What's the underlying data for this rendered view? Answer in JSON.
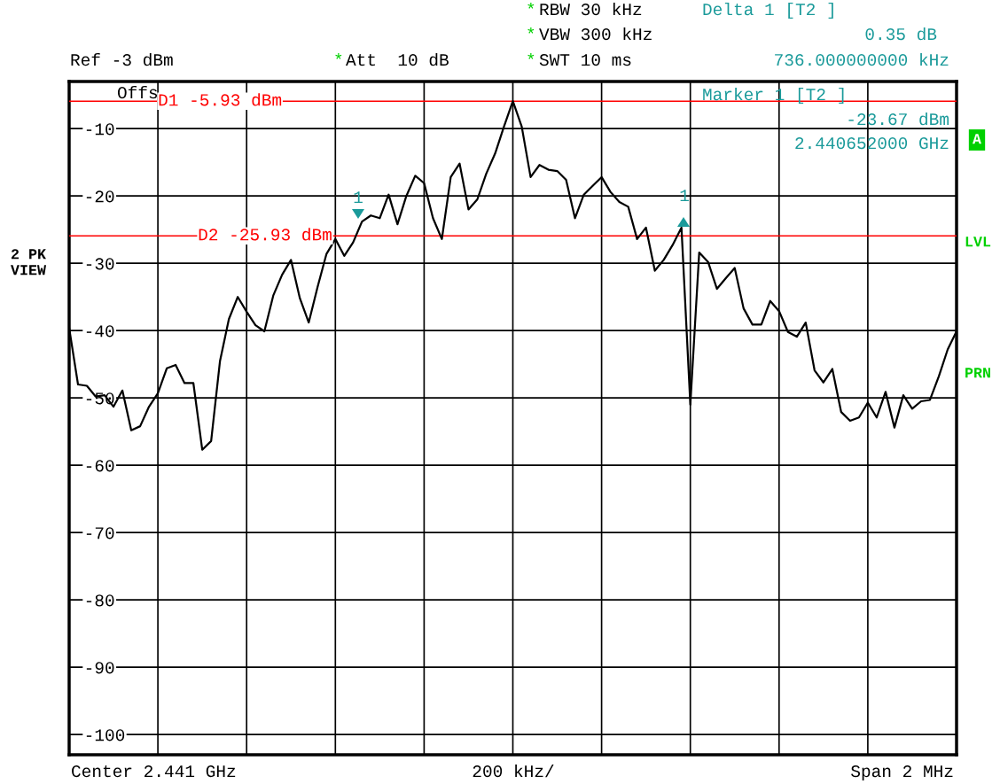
{
  "chart_data": {
    "type": "line",
    "categories": [
      null,
      null,
      null,
      null,
      null,
      null,
      null,
      null,
      null,
      null,
      null,
      null,
      null,
      null,
      null,
      null,
      null,
      null,
      null,
      null,
      null,
      null,
      null,
      null,
      null,
      null,
      null,
      null,
      null,
      null,
      null,
      null,
      null,
      null,
      null,
      null,
      null,
      null,
      null,
      null,
      null,
      null,
      null,
      null,
      null,
      null,
      null,
      null,
      null,
      null,
      null,
      null,
      null,
      null,
      null,
      null,
      null,
      null,
      null,
      null,
      null,
      null,
      null,
      null,
      null,
      null,
      null,
      null,
      null,
      null,
      null,
      null,
      null,
      null,
      null,
      null,
      null,
      null,
      null,
      null,
      null,
      null,
      null,
      null,
      null,
      null,
      null,
      null,
      null,
      null,
      null,
      null,
      null,
      null,
      null,
      null,
      null,
      null,
      null,
      null,
      null
    ],
    "ylim": [
      -103,
      -3
    ],
    "yticks": [
      {
        "value": -10,
        "label": "-10"
      },
      {
        "value": -20,
        "label": "-20"
      },
      {
        "value": -30,
        "label": "-30"
      },
      {
        "value": -40,
        "label": "-40"
      },
      {
        "value": -50,
        "label": "-50"
      },
      {
        "value": -60,
        "label": "-60"
      },
      {
        "value": -70,
        "label": "-70"
      },
      {
        "value": -80,
        "label": "-80"
      },
      {
        "value": -90,
        "label": "-90"
      },
      {
        "value": -100,
        "label": "-100"
      }
    ],
    "grid": true,
    "tick_labels": "y",
    "series": [
      {
        "color": "#000000",
        "line_style": "solid",
        "values": [
          -39.6,
          -48.0,
          -48.2,
          -49.8,
          -49.6,
          -51.3,
          -48.9,
          -54.8,
          -54.2,
          -51.3,
          -49.3,
          -45.6,
          -45.1,
          -47.8,
          -47.8,
          -57.7,
          -56.4,
          -44.5,
          -38.3,
          -35.0,
          -37.2,
          -39.2,
          -40.1,
          -34.8,
          -31.7,
          -29.5,
          -35.2,
          -38.8,
          -33.5,
          -28.6,
          -26.4,
          -28.9,
          -26.9,
          -23.8,
          -22.9,
          -23.3,
          -19.8,
          -24.2,
          -20.0,
          -17.0,
          -18.1,
          -23.3,
          -26.4,
          -17.2,
          -15.2,
          -22.0,
          -20.5,
          -16.7,
          -13.7,
          -9.7,
          -5.9,
          -9.7,
          -17.2,
          -15.4,
          -16.1,
          -16.3,
          -17.6,
          -23.3,
          -19.8,
          -18.5,
          -17.2,
          -19.4,
          -20.9,
          -21.6,
          -26.4,
          -24.7,
          -31.1,
          -29.5,
          -27.3,
          -24.7,
          -51.0,
          -28.4,
          -29.8,
          -33.8,
          -32.2,
          -30.7,
          -36.7,
          -39.1,
          -39.1,
          -35.6,
          -37.1,
          -40.2,
          -40.9,
          -38.8,
          -45.9,
          -47.7,
          -45.7,
          -52.1,
          -53.4,
          -52.9,
          -50.7,
          -52.9,
          -49.1,
          -54.4,
          -49.6,
          -51.6,
          -50.5,
          -50.3,
          -46.8,
          -42.8,
          -40.1
        ]
      }
    ],
    "ref_lines": [
      {
        "axis": "y",
        "value": -5.93,
        "label": "D1 -5.93 dBm",
        "color": "#ff0000",
        "line_style": "solid"
      },
      {
        "axis": "y",
        "value": -25.93,
        "label": "D2 -25.93 dBm",
        "color": "#ff0000",
        "line_style": "solid"
      }
    ],
    "annotations": [
      "*",
      "RBW 30 kHz",
      "*",
      "VBW 300 kHz",
      "*",
      "SWT 10 ms",
      "Ref -3 dBm",
      "*",
      "Att  10 dB",
      "Delta 1 [T2 ]",
      "0.35 dB",
      "736.000000000 kHz",
      "Marker 1 [T2 ]",
      "-23.67 dBm",
      "2.440652000 GHz",
      "Offs",
      "2 PK\nVIEW",
      "A",
      "LVL",
      "PRN",
      "Center 2.441 GHz",
      "200 kHz/",
      "Span 2 MHz",
      "1",
      "1"
    ]
  }
}
